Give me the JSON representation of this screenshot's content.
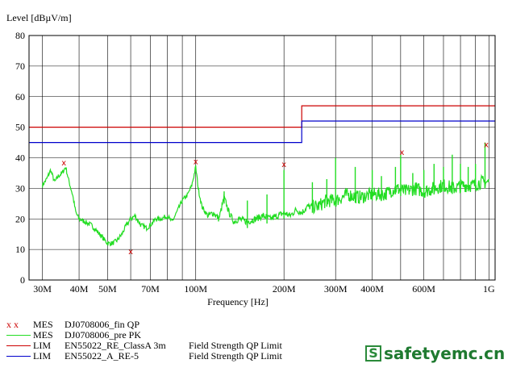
{
  "chart_data": {
    "type": "line",
    "title": "",
    "ylabel": "Level [dBµV/m]",
    "xlabel": "Frequency [Hz]",
    "x_scale": "log",
    "xlim": [
      27000000,
      1050000000
    ],
    "ylim": [
      0,
      80
    ],
    "grid": true,
    "y_ticks": [
      0,
      10,
      20,
      30,
      40,
      50,
      60,
      70,
      80
    ],
    "x_ticks": [
      {
        "value": 30000000,
        "label": "30M"
      },
      {
        "value": 40000000,
        "label": "40M"
      },
      {
        "value": 50000000,
        "label": "50M"
      },
      {
        "value": 70000000,
        "label": "70M"
      },
      {
        "value": 100000000,
        "label": "100M"
      },
      {
        "value": 200000000,
        "label": "200M"
      },
      {
        "value": 300000000,
        "label": "300M"
      },
      {
        "value": 400000000,
        "label": "400M"
      },
      {
        "value": 600000000,
        "label": "600M"
      },
      {
        "value": 1000000000,
        "label": "1G"
      }
    ],
    "x_minor_grid": [
      60000000,
      80000000,
      90000000,
      500000000,
      700000000,
      800000000,
      900000000
    ],
    "series": [
      {
        "kind": "MES",
        "name": "DJ0708006_fin QP",
        "color": "#cc0000",
        "marker": "x",
        "points": [
          {
            "x": 35500000,
            "y": 38.5
          },
          {
            "x": 60000000,
            "y": 9.5
          },
          {
            "x": 100000000,
            "y": 39.0
          },
          {
            "x": 200000000,
            "y": 38.0
          },
          {
            "x": 505000000,
            "y": 42.0
          },
          {
            "x": 980000000,
            "y": 44.5
          }
        ]
      },
      {
        "kind": "MES",
        "name": "DJ0708006_pre PK",
        "color": "#22dd22",
        "points": [
          {
            "x": 30000000,
            "y": 31
          },
          {
            "x": 31000000,
            "y": 33
          },
          {
            "x": 32000000,
            "y": 36
          },
          {
            "x": 33000000,
            "y": 32
          },
          {
            "x": 34000000,
            "y": 34
          },
          {
            "x": 35000000,
            "y": 35
          },
          {
            "x": 36000000,
            "y": 37
          },
          {
            "x": 37000000,
            "y": 32
          },
          {
            "x": 38000000,
            "y": 28
          },
          {
            "x": 39000000,
            "y": 22
          },
          {
            "x": 40000000,
            "y": 20
          },
          {
            "x": 42000000,
            "y": 19
          },
          {
            "x": 44000000,
            "y": 18
          },
          {
            "x": 46000000,
            "y": 16
          },
          {
            "x": 48000000,
            "y": 14
          },
          {
            "x": 50000000,
            "y": 12
          },
          {
            "x": 52000000,
            "y": 12
          },
          {
            "x": 54000000,
            "y": 13
          },
          {
            "x": 56000000,
            "y": 15
          },
          {
            "x": 58000000,
            "y": 18
          },
          {
            "x": 60000000,
            "y": 20
          },
          {
            "x": 62000000,
            "y": 21
          },
          {
            "x": 65000000,
            "y": 18
          },
          {
            "x": 68000000,
            "y": 17
          },
          {
            "x": 70000000,
            "y": 18
          },
          {
            "x": 73000000,
            "y": 20
          },
          {
            "x": 76000000,
            "y": 20
          },
          {
            "x": 80000000,
            "y": 21
          },
          {
            "x": 83000000,
            "y": 19
          },
          {
            "x": 86000000,
            "y": 22
          },
          {
            "x": 90000000,
            "y": 26
          },
          {
            "x": 94000000,
            "y": 28
          },
          {
            "x": 97000000,
            "y": 31
          },
          {
            "x": 100000000,
            "y": 37
          },
          {
            "x": 102000000,
            "y": 30
          },
          {
            "x": 105000000,
            "y": 24
          },
          {
            "x": 110000000,
            "y": 21
          },
          {
            "x": 115000000,
            "y": 22
          },
          {
            "x": 120000000,
            "y": 20
          },
          {
            "x": 125000000,
            "y": 27
          },
          {
            "x": 130000000,
            "y": 22
          },
          {
            "x": 135000000,
            "y": 19
          },
          {
            "x": 140000000,
            "y": 20
          },
          {
            "x": 150000000,
            "y": 19
          },
          {
            "x": 160000000,
            "y": 20
          },
          {
            "x": 170000000,
            "y": 21
          },
          {
            "x": 180000000,
            "y": 20
          },
          {
            "x": 190000000,
            "y": 21
          },
          {
            "x": 200000000,
            "y": 22
          },
          {
            "x": 210000000,
            "y": 21
          },
          {
            "x": 220000000,
            "y": 23
          },
          {
            "x": 230000000,
            "y": 22
          },
          {
            "x": 240000000,
            "y": 24
          },
          {
            "x": 260000000,
            "y": 24
          },
          {
            "x": 280000000,
            "y": 26
          },
          {
            "x": 300000000,
            "y": 26
          },
          {
            "x": 330000000,
            "y": 28
          },
          {
            "x": 360000000,
            "y": 27
          },
          {
            "x": 400000000,
            "y": 28
          },
          {
            "x": 440000000,
            "y": 28
          },
          {
            "x": 480000000,
            "y": 30
          },
          {
            "x": 520000000,
            "y": 29
          },
          {
            "x": 560000000,
            "y": 30
          },
          {
            "x": 600000000,
            "y": 29
          },
          {
            "x": 650000000,
            "y": 30
          },
          {
            "x": 700000000,
            "y": 31
          },
          {
            "x": 760000000,
            "y": 30
          },
          {
            "x": 820000000,
            "y": 31
          },
          {
            "x": 880000000,
            "y": 31
          },
          {
            "x": 940000000,
            "y": 32
          },
          {
            "x": 1000000000,
            "y": 32
          }
        ],
        "spikes": [
          {
            "x": 125000000,
            "y": 29
          },
          {
            "x": 150000000,
            "y": 26
          },
          {
            "x": 175000000,
            "y": 28
          },
          {
            "x": 200000000,
            "y": 36
          },
          {
            "x": 250000000,
            "y": 32
          },
          {
            "x": 280000000,
            "y": 33
          },
          {
            "x": 300000000,
            "y": 40
          },
          {
            "x": 350000000,
            "y": 37
          },
          {
            "x": 400000000,
            "y": 36
          },
          {
            "x": 430000000,
            "y": 34
          },
          {
            "x": 480000000,
            "y": 37
          },
          {
            "x": 500000000,
            "y": 41
          },
          {
            "x": 550000000,
            "y": 35
          },
          {
            "x": 600000000,
            "y": 36
          },
          {
            "x": 650000000,
            "y": 38
          },
          {
            "x": 700000000,
            "y": 37
          },
          {
            "x": 750000000,
            "y": 41
          },
          {
            "x": 800000000,
            "y": 38
          },
          {
            "x": 850000000,
            "y": 37
          },
          {
            "x": 900000000,
            "y": 38
          },
          {
            "x": 970000000,
            "y": 45
          }
        ]
      },
      {
        "kind": "LIM",
        "name": "EN55022_RE_ClassA 3m",
        "desc": "Field Strength QP Limit",
        "color": "#cc0000",
        "step": [
          {
            "x": 27000000,
            "y": 50
          },
          {
            "x": 230000000,
            "y": 50
          },
          {
            "x": 230000000,
            "y": 57
          },
          {
            "x": 1050000000,
            "y": 57
          }
        ]
      },
      {
        "kind": "LIM",
        "name": "EN55022_A_RE-5",
        "desc": "Field Strength QP Limit",
        "color": "#0000cc",
        "step": [
          {
            "x": 27000000,
            "y": 45
          },
          {
            "x": 230000000,
            "y": 45
          },
          {
            "x": 230000000,
            "y": 52
          },
          {
            "x": 1050000000,
            "y": 52
          }
        ]
      }
    ]
  },
  "legend": {
    "marker_glyph": "x x",
    "rows": [
      {
        "kind": "MES",
        "name": "DJ0708006_fin QP",
        "desc": ""
      },
      {
        "kind": "MES",
        "name": "DJ0708006_pre PK",
        "desc": ""
      },
      {
        "kind": "LIM",
        "name": "EN55022_RE_ClassA 3m",
        "desc": "Field Strength QP Limit"
      },
      {
        "kind": "LIM",
        "name": "EN55022_A_RE-5",
        "desc": "Field Strength QP Limit"
      }
    ]
  },
  "watermark": {
    "text": "safetyemc.cn",
    "glyph": "S"
  }
}
